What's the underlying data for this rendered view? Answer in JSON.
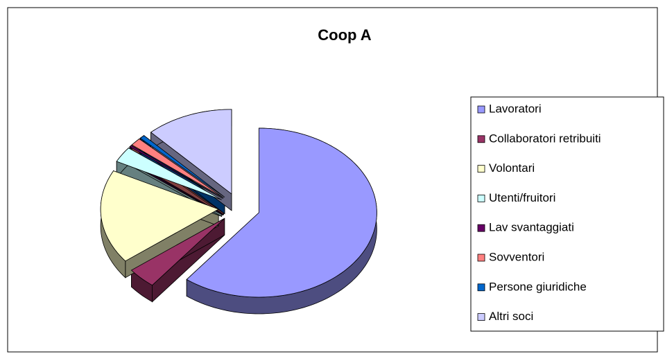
{
  "chart_data": {
    "type": "pie",
    "title": "Coop A",
    "categories": [
      "Lavoratori",
      "Collaboratori retribuiti",
      "Volontari",
      "Utenti/fruitori",
      "Lav svantaggiati",
      "Sovventori",
      "Persone giuridiche",
      "Altri soci"
    ],
    "values": [
      60.5,
      4,
      18,
      3,
      0.3,
      1.5,
      0.7,
      12
    ],
    "colors": [
      "#9999ff",
      "#993366",
      "#ffffcc",
      "#ccffff",
      "#660066",
      "#ff8080",
      "#0066cc",
      "#ccccff"
    ],
    "legend": "right"
  }
}
